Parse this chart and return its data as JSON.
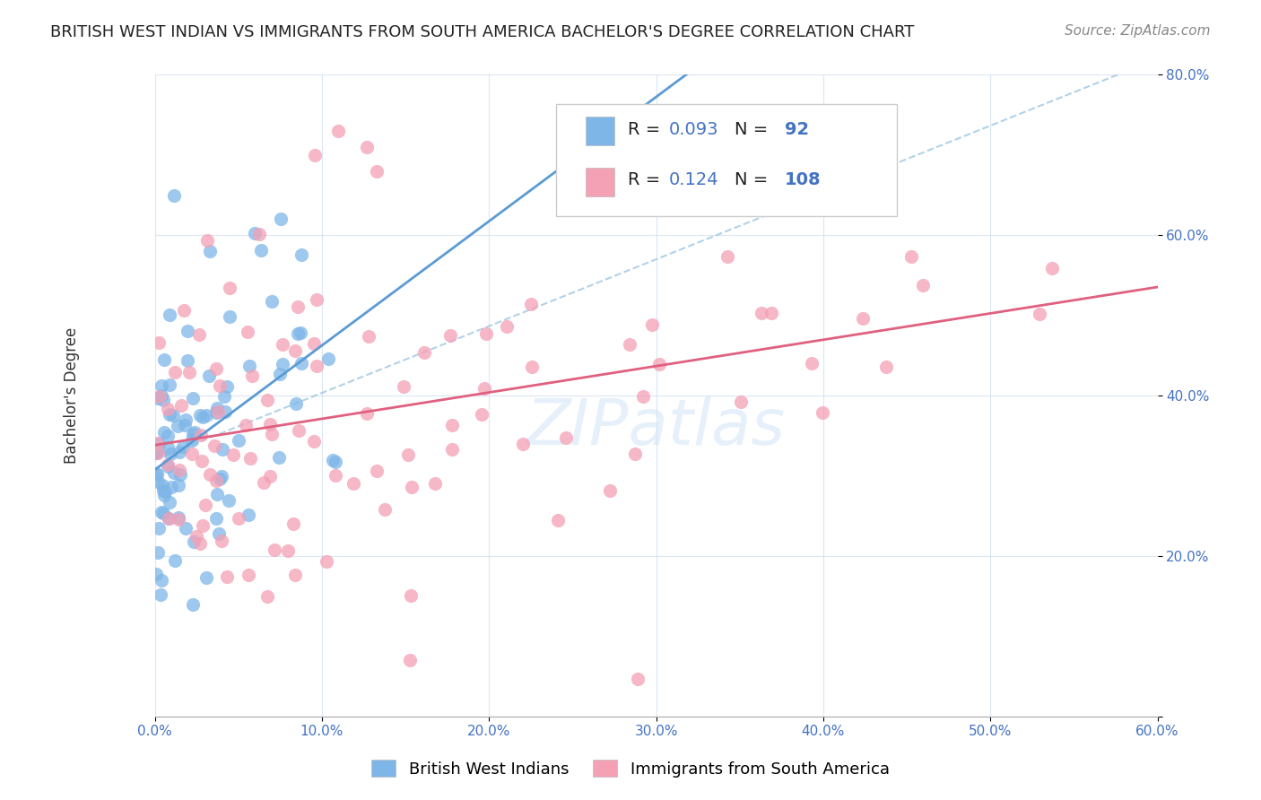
{
  "title": "BRITISH WEST INDIAN VS IMMIGRANTS FROM SOUTH AMERICA BACHELOR'S DEGREE CORRELATION CHART",
  "source": "Source: ZipAtlas.com",
  "ylabel": "Bachelor's Degree",
  "R_blue": 0.093,
  "N_blue": 92,
  "R_pink": 0.124,
  "N_pink": 108,
  "xlim": [
    0.0,
    0.6
  ],
  "ylim": [
    0.0,
    0.8
  ],
  "xticks": [
    0.0,
    0.1,
    0.2,
    0.3,
    0.4,
    0.5,
    0.6
  ],
  "yticks": [
    0.0,
    0.2,
    0.4,
    0.6,
    0.8
  ],
  "xtick_labels": [
    "0.0%",
    "10.0%",
    "20.0%",
    "30.0%",
    "40.0%",
    "50.0%",
    "60.0%"
  ],
  "ytick_labels": [
    "",
    "20.0%",
    "40.0%",
    "60.0%",
    "80.0%"
  ],
  "color_blue": "#7EB6E8",
  "color_pink": "#F4A0B5",
  "line_blue": "#5B9BD5",
  "line_pink": "#E06080",
  "background": "#FFFFFF",
  "watermark": "ZIPatlas",
  "title_fontsize": 13,
  "source_fontsize": 11,
  "axis_label_color": "#4472C4",
  "seed": 42
}
